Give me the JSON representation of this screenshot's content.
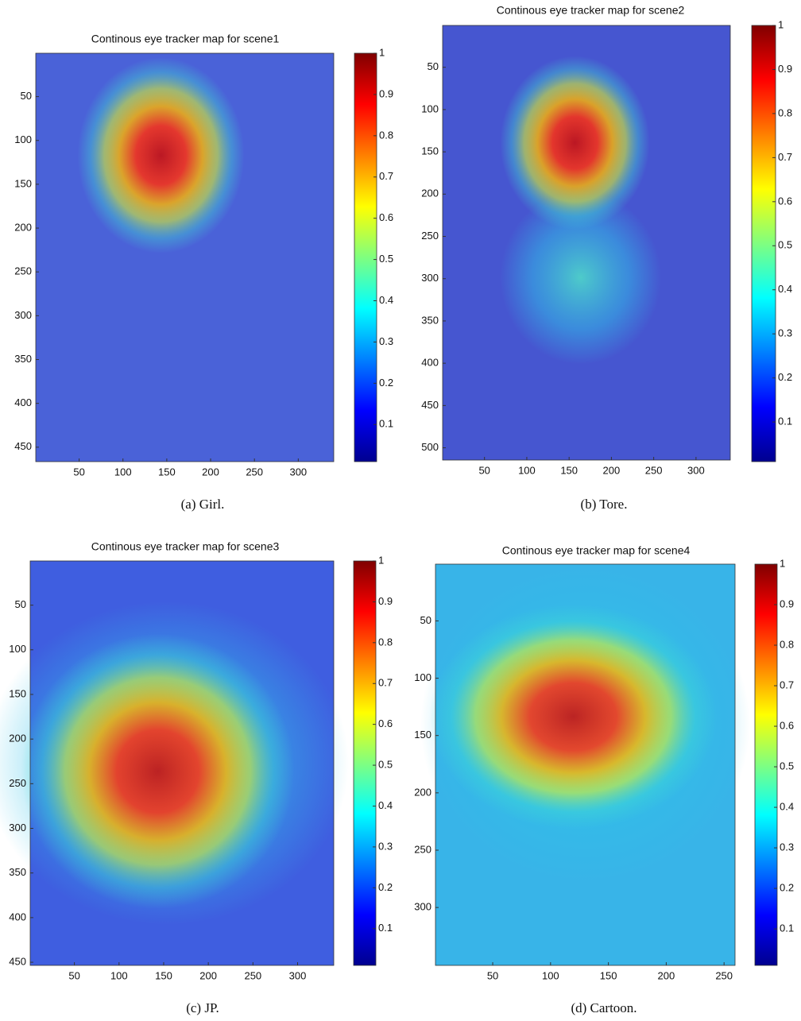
{
  "chart_data": [
    {
      "type": "heatmap",
      "title": "Continous eye tracker map for scene1",
      "caption": "(a)  Girl.",
      "xlim": [
        0.5,
        340.5
      ],
      "ylim": [
        0.5,
        466.5
      ],
      "y_reversed": true,
      "xticks": [
        50,
        100,
        150,
        200,
        250,
        300
      ],
      "yticks": [
        50,
        100,
        150,
        200,
        250,
        300,
        350,
        400,
        450
      ],
      "colorbar_lim": [
        0.01,
        1
      ],
      "colorbar_ticks": [
        0.1,
        0.2,
        0.3,
        0.4,
        0.5,
        0.6,
        0.7,
        0.8,
        0.9,
        1
      ]
    },
    {
      "type": "heatmap",
      "title": "Continous eye tracker map for scene2",
      "caption": "(b)  Tore.",
      "xlim": [
        0.5,
        340.5
      ],
      "ylim": [
        0.5,
        514.5
      ],
      "y_reversed": true,
      "xticks": [
        50,
        100,
        150,
        200,
        250,
        300
      ],
      "yticks": [
        50,
        100,
        150,
        200,
        250,
        300,
        350,
        400,
        450,
        500
      ],
      "colorbar_lim": [
        0.01,
        1
      ],
      "colorbar_ticks": [
        0.1,
        0.2,
        0.3,
        0.4,
        0.5,
        0.6,
        0.7,
        0.8,
        0.9,
        1
      ]
    },
    {
      "type": "heatmap",
      "title": "Continous eye tracker map for scene3",
      "caption": "(c)  JP.",
      "xlim": [
        0.5,
        340.5
      ],
      "ylim": [
        0.5,
        453.5
      ],
      "y_reversed": true,
      "xticks": [
        50,
        100,
        150,
        200,
        250,
        300
      ],
      "yticks": [
        50,
        100,
        150,
        200,
        250,
        300,
        350,
        400,
        450
      ],
      "colorbar_lim": [
        0.01,
        1
      ],
      "colorbar_ticks": [
        0.1,
        0.2,
        0.3,
        0.4,
        0.5,
        0.6,
        0.7,
        0.8,
        0.9,
        1
      ]
    },
    {
      "type": "heatmap",
      "title": "Continous eye tracker map for scene4",
      "caption": "(d)  Cartoon.",
      "xlim": [
        0.5,
        259.5
      ],
      "ylim": [
        0.5,
        350.5
      ],
      "y_reversed": true,
      "xticks": [
        50,
        100,
        150,
        200,
        250
      ],
      "yticks": [
        50,
        100,
        150,
        200,
        250,
        300
      ],
      "colorbar_lim": [
        0.01,
        1
      ],
      "colorbar_ticks": [
        0.1,
        0.2,
        0.3,
        0.4,
        0.5,
        0.6,
        0.7,
        0.8,
        0.9,
        1
      ]
    }
  ]
}
